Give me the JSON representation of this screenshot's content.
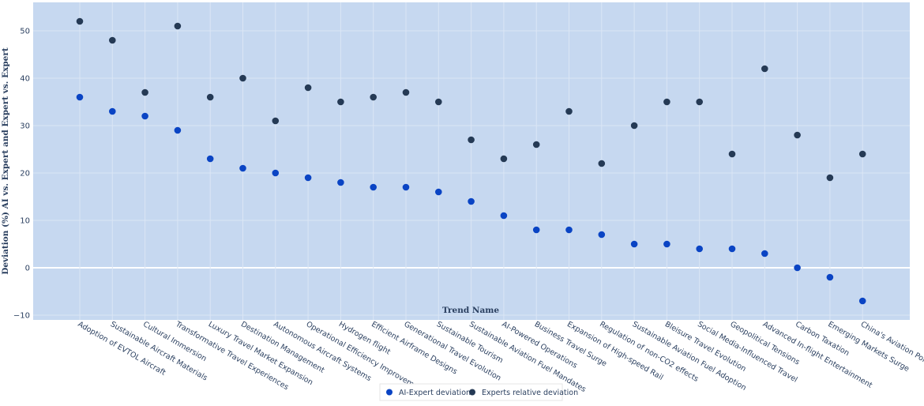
{
  "chart_data": {
    "type": "scatter",
    "xlabel": "Trend Name",
    "ylabel": "Deviation (%) AI vs. Expert and Expert vs. Expert",
    "ylim": [
      -11,
      56
    ],
    "yticks": [
      -10,
      0,
      10,
      20,
      30,
      40,
      50
    ],
    "grid": true,
    "legend_position": "bottom-center",
    "colors": {
      "plot_bg": "#c6d8f0",
      "grid": "#dbe6f5",
      "zero_line": "#ffffff"
    },
    "categories": [
      "Adoption of EVTOL Aircraft",
      "Sustainable Aircraft Materials",
      "Cultural Immersion",
      "Transformative Travel Experiences",
      "Luxury Travel Market Expansion",
      "Destination Management",
      "Autonomous Aircraft Systems",
      "Operational Efficiency Improvements",
      "Hydrogen flight",
      "Efficient Airframe Designs",
      "Generational Travel Evolution",
      "Sustainable Tourism",
      "Sustainable Aviation Fuel Mandates",
      "AI-Powered Operations",
      "Business Travel Surge",
      "Expansion of High-speed Rail",
      "Regulation of non-CO2 effects",
      "Sustainable Aviation Fuel Adoption",
      "Bleisure Travel Evolution",
      "Social Media-Influenced Travel",
      "Geopolitical Tensions",
      "Advanced In-flight Entertainment",
      "Carbon Taxation",
      "Emerging Markets Surge",
      "China's Aviation Policy"
    ],
    "series": [
      {
        "name": "AI-Expert deviation",
        "color": "#0a44c4",
        "values": [
          36,
          33,
          32,
          29,
          23,
          21,
          20,
          19,
          18,
          17,
          17,
          16,
          14,
          11,
          8,
          8,
          7,
          5,
          5,
          4,
          4,
          3,
          0,
          -2,
          -7
        ]
      },
      {
        "name": "Experts relative deviation",
        "color": "#253a55",
        "values": [
          52,
          48,
          37,
          51,
          36,
          40,
          31,
          38,
          35,
          36,
          37,
          35,
          27,
          23,
          26,
          33,
          22,
          30,
          35,
          35,
          24,
          42,
          28,
          19,
          24
        ]
      }
    ]
  }
}
